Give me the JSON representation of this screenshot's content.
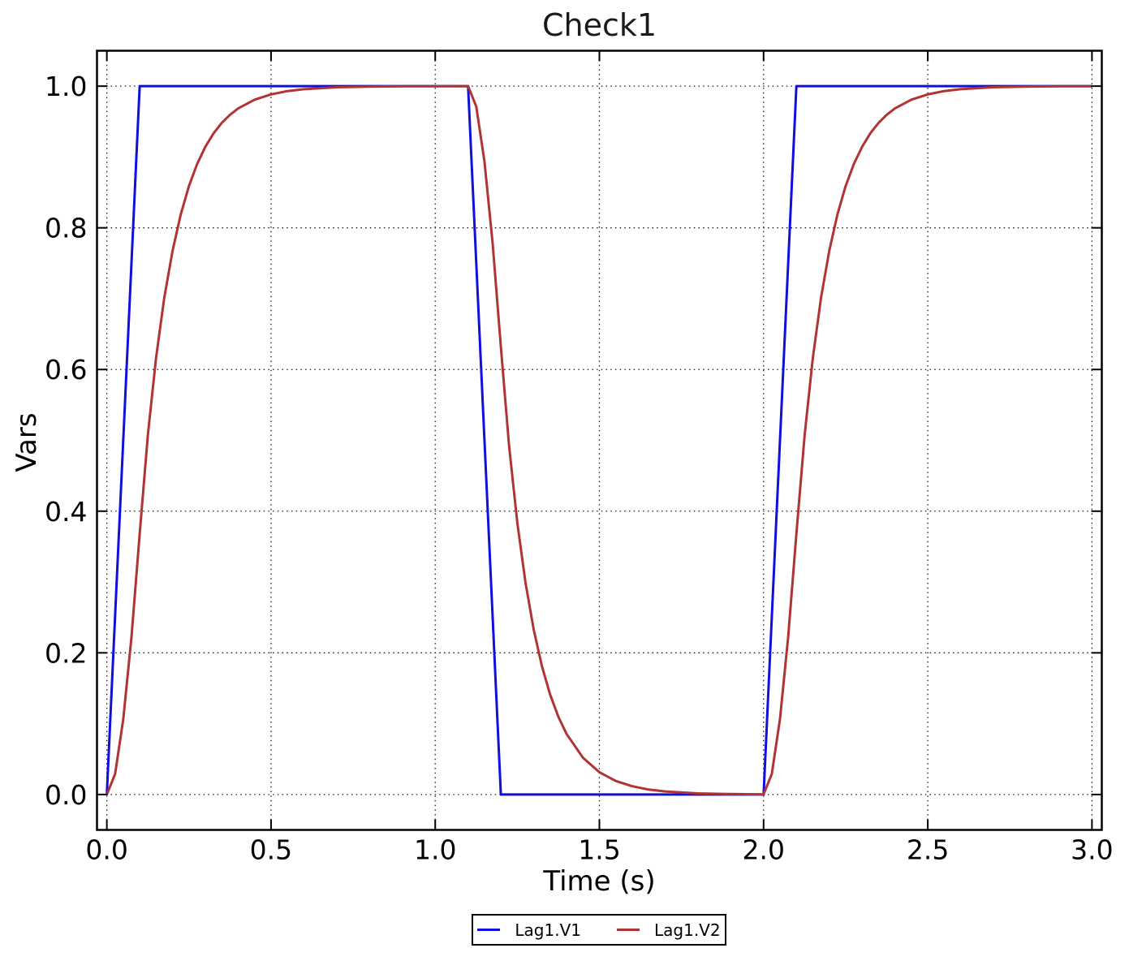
{
  "page": {
    "background": "#ffffff"
  },
  "chart_data": {
    "type": "line",
    "title": "Check1",
    "xlabel": "Time (s)",
    "ylabel": "Vars",
    "xlim": [
      -0.03,
      3.03
    ],
    "ylim": [
      -0.05,
      1.05
    ],
    "xticks": [
      0,
      0.5,
      1.0,
      1.5,
      2.0,
      2.5,
      3.0
    ],
    "xtick_labels": [
      "0.0",
      "0.5",
      "1.0",
      "1.5",
      "2.0",
      "2.5",
      "3.0"
    ],
    "yticks": [
      0,
      0.2,
      0.4,
      0.6,
      0.8,
      1.0
    ],
    "ytick_labels": [
      "0.0",
      "0.2",
      "0.4",
      "0.6",
      "0.8",
      "1.0"
    ],
    "grid": "dotted major gridlines on both axes",
    "frame_color": "#000000",
    "gridline_color": "#1a1a1a",
    "legend_position": "bottom-center outside plot",
    "series": [
      {
        "name": "Lag1.V1",
        "color": "#0f0fe0",
        "width": 3,
        "shape": "trapezoidal pulse train",
        "points": [
          [
            0,
            0
          ],
          [
            0.1,
            1
          ],
          [
            1.1,
            1
          ],
          [
            1.2,
            0
          ],
          [
            2.0,
            0
          ],
          [
            2.1,
            1
          ],
          [
            3.0,
            1
          ]
        ]
      },
      {
        "name": "Lag1.V2",
        "color": "#b03434",
        "width": 3,
        "shape": "first-order lag response (tau = 0.1 s) to Lag1.V1",
        "points": [
          [
            0,
            0
          ],
          [
            0.025,
            0.0288
          ],
          [
            0.05,
            0.1065
          ],
          [
            0.075,
            0.2224
          ],
          [
            0.1,
            0.3679
          ],
          [
            0.125,
            0.5077
          ],
          [
            0.15,
            0.6166
          ],
          [
            0.175,
            0.7014
          ],
          [
            0.2,
            0.7674
          ],
          [
            0.225,
            0.8189
          ],
          [
            0.25,
            0.859
          ],
          [
            0.275,
            0.8901
          ],
          [
            0.3,
            0.9145
          ],
          [
            0.325,
            0.9334
          ],
          [
            0.35,
            0.9481
          ],
          [
            0.375,
            0.9596
          ],
          [
            0.4,
            0.9685
          ],
          [
            0.45,
            0.9809
          ],
          [
            0.5,
            0.9884
          ],
          [
            0.55,
            0.993
          ],
          [
            0.6,
            0.9957
          ],
          [
            0.7,
            0.9984
          ],
          [
            0.8,
            0.9994
          ],
          [
            0.9,
            0.9998
          ],
          [
            1.0,
            0.9999
          ],
          [
            1.1,
            1.0
          ],
          [
            1.125,
            0.9712
          ],
          [
            1.15,
            0.8935
          ],
          [
            1.175,
            0.7776
          ],
          [
            1.2,
            0.6321
          ],
          [
            1.225,
            0.4923
          ],
          [
            1.25,
            0.3834
          ],
          [
            1.275,
            0.2986
          ],
          [
            1.3,
            0.2326
          ],
          [
            1.325,
            0.1811
          ],
          [
            1.35,
            0.141
          ],
          [
            1.375,
            0.1099
          ],
          [
            1.4,
            0.0855
          ],
          [
            1.45,
            0.0519
          ],
          [
            1.5,
            0.0315
          ],
          [
            1.55,
            0.0191
          ],
          [
            1.6,
            0.0116
          ],
          [
            1.65,
            0.007
          ],
          [
            1.7,
            0.0043
          ],
          [
            1.8,
            0.0016
          ],
          [
            1.9,
            0.0006
          ],
          [
            2.0,
            0.0002
          ],
          [
            2.025,
            0.029
          ],
          [
            2.05,
            0.1067
          ],
          [
            2.075,
            0.2226
          ],
          [
            2.1,
            0.368
          ],
          [
            2.125,
            0.5078
          ],
          [
            2.15,
            0.6167
          ],
          [
            2.175,
            0.7015
          ],
          [
            2.2,
            0.7675
          ],
          [
            2.225,
            0.819
          ],
          [
            2.25,
            0.8591
          ],
          [
            2.275,
            0.8901
          ],
          [
            2.3,
            0.9145
          ],
          [
            2.325,
            0.9335
          ],
          [
            2.35,
            0.9481
          ],
          [
            2.375,
            0.9596
          ],
          [
            2.4,
            0.9685
          ],
          [
            2.45,
            0.9809
          ],
          [
            2.5,
            0.9884
          ],
          [
            2.55,
            0.993
          ],
          [
            2.6,
            0.9957
          ],
          [
            2.7,
            0.9984
          ],
          [
            2.8,
            0.9994
          ],
          [
            2.9,
            0.9998
          ],
          [
            3.0,
            0.9999
          ]
        ]
      }
    ]
  }
}
